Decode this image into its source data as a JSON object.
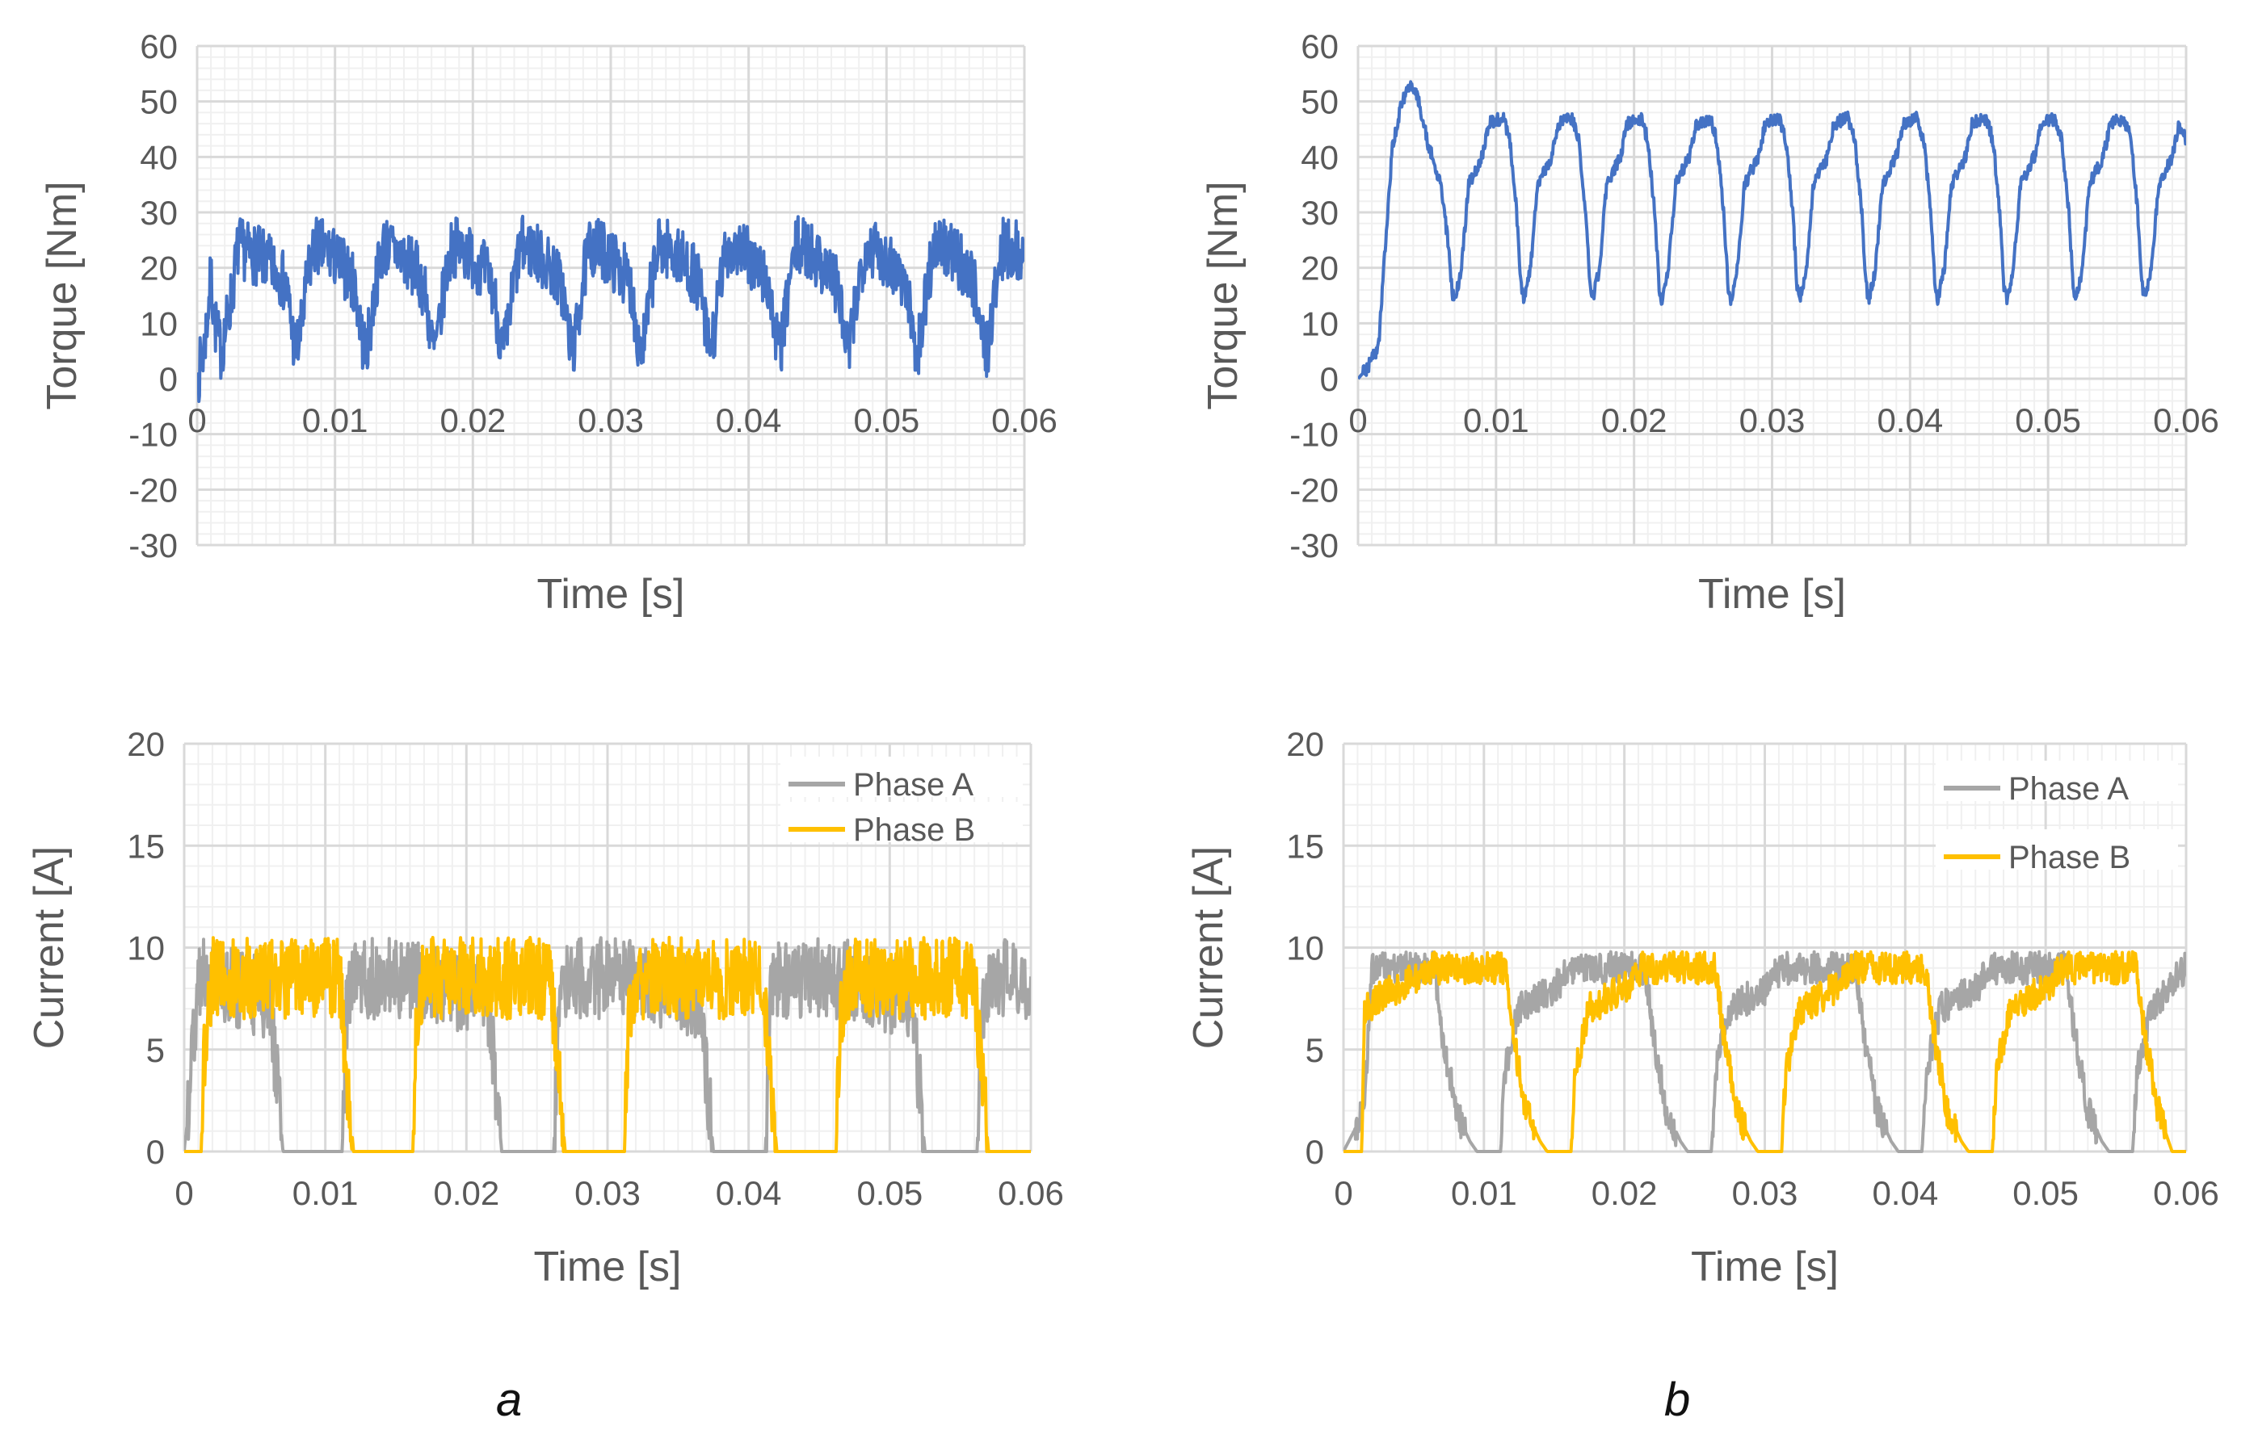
{
  "panel_labels": [
    "a",
    "b"
  ],
  "colors": {
    "torque": "#4472c4",
    "phase_a": "#a6a6a6",
    "phase_b": "#ffc000",
    "axis_text": "#595959",
    "major_grid": "#d9d9d9",
    "minor_grid": "#f0f0f0"
  },
  "chart_data": [
    {
      "id": "a-torque",
      "type": "line",
      "panel": "a",
      "title": "",
      "xlabel": "Time [s]",
      "ylabel": "Torque [Nm]",
      "xlim": [
        0,
        0.06
      ],
      "ylim": [
        -30,
        60
      ],
      "xticks": [
        0,
        0.01,
        0.02,
        0.03,
        0.04,
        0.05,
        0.06
      ],
      "xtick_labels": [
        "0",
        "0.01",
        "0.02",
        "0.03",
        "0.04",
        "0.05",
        "0.06"
      ],
      "yticks": [
        -30,
        -20,
        -10,
        0,
        10,
        20,
        30,
        40,
        50,
        60
      ],
      "ytick_labels": [
        "-30",
        "-20",
        "-10",
        "0",
        "10",
        "20",
        "30",
        "40",
        "50",
        "60"
      ],
      "legend": null,
      "series": [
        {
          "name": "Torque",
          "color": "#4472c4",
          "period": 0.005,
          "x": [
            0,
            0.0005,
            0.001,
            0.0013,
            0.0017,
            0.002,
            0.0025,
            0.003,
            0.0035,
            0.0045,
            0.006,
            0.0065,
            0.007,
            0.0072,
            0.0075,
            0.008,
            0.0085,
            0.0095,
            0.011,
            0.0115,
            0.012,
            0.0122,
            0.0125,
            0.013,
            0.0135,
            0.0145,
            0.016,
            0.0165,
            0.017,
            0.0172,
            0.0175,
            0.018,
            0.0185,
            0.0195,
            0.021,
            0.0215,
            0.022,
            0.0222,
            0.0225,
            0.023,
            0.0235,
            0.0245,
            0.026,
            0.0265,
            0.027,
            0.0272,
            0.0275,
            0.028,
            0.0285,
            0.0295,
            0.031,
            0.0315,
            0.032,
            0.0322,
            0.0325,
            0.033,
            0.0335,
            0.0345,
            0.036,
            0.0365,
            0.037,
            0.0372,
            0.0375,
            0.038,
            0.0385,
            0.0395,
            0.041,
            0.0415,
            0.042,
            0.0422,
            0.0425,
            0.043,
            0.0435,
            0.0445,
            0.046,
            0.0465,
            0.047,
            0.0472,
            0.0475,
            0.048,
            0.0485,
            0.0495,
            0.051,
            0.0515,
            0.052,
            0.0522,
            0.0525,
            0.053,
            0.0535,
            0.0545,
            0.056,
            0.0565,
            0.057,
            0.0572,
            0.0575,
            0.058,
            0.0585,
            0.0595,
            0.06
          ],
          "y": [
            0,
            5,
            18,
            10,
            5,
            8,
            15,
            24,
            23,
            22,
            19,
            16,
            7,
            5,
            8,
            18,
            24,
            23,
            19,
            16,
            7,
            5,
            8,
            18,
            24,
            23,
            19,
            16,
            7,
            5,
            8,
            18,
            24,
            23,
            19,
            16,
            7,
            5,
            8,
            18,
            24,
            23,
            19,
            16,
            7,
            5,
            8,
            18,
            24,
            23,
            19,
            16,
            7,
            5,
            8,
            18,
            24,
            23,
            19,
            16,
            7,
            5,
            8,
            18,
            24,
            23,
            19,
            16,
            7,
            5,
            8,
            18,
            24,
            23,
            19,
            16,
            7,
            5,
            8,
            18,
            24,
            23,
            19,
            16,
            7,
            5,
            8,
            18,
            24,
            23,
            19,
            16,
            7,
            5,
            8,
            18,
            24,
            23,
            20
          ],
          "ripple": 5.5
        }
      ]
    },
    {
      "id": "b-torque",
      "type": "line",
      "panel": "b",
      "title": "",
      "xlabel": "Time [s]",
      "ylabel": "Torque [Nm]",
      "xlim": [
        0,
        0.06
      ],
      "ylim": [
        -30,
        60
      ],
      "xticks": [
        0,
        0.01,
        0.02,
        0.03,
        0.04,
        0.05,
        0.06
      ],
      "xtick_labels": [
        "0",
        "0.01",
        "0.02",
        "0.03",
        "0.04",
        "0.05",
        "0.06"
      ],
      "yticks": [
        -30,
        -20,
        -10,
        0,
        10,
        20,
        30,
        40,
        50,
        60
      ],
      "ytick_labels": [
        "-30",
        "-20",
        "-10",
        "0",
        "10",
        "20",
        "30",
        "40",
        "50",
        "60"
      ],
      "legend": null,
      "series": [
        {
          "name": "Torque",
          "color": "#4472c4",
          "x": [
            0,
            0.0007,
            0.0015,
            0.002,
            0.0025,
            0.003,
            0.0035,
            0.004,
            0.0045,
            0.005,
            0.006,
            0.0065,
            0.0068,
            0.007,
            0.0075,
            0.008,
            0.009,
            0.0095,
            0.0105,
            0.011,
            0.0115,
            0.0118,
            0.012,
            0.0125,
            0.013,
            0.014,
            0.0145,
            0.0155,
            0.016,
            0.0165,
            0.0168,
            0.017,
            0.0175,
            0.018,
            0.019,
            0.0195,
            0.0205,
            0.021,
            0.0215,
            0.0218,
            0.022,
            0.0225,
            0.023,
            0.024,
            0.0245,
            0.0255,
            0.026,
            0.0265,
            0.0268,
            0.027,
            0.0275,
            0.028,
            0.029,
            0.0295,
            0.0305,
            0.031,
            0.0315,
            0.0318,
            0.032,
            0.0325,
            0.033,
            0.034,
            0.0345,
            0.0355,
            0.036,
            0.0365,
            0.0368,
            0.037,
            0.0375,
            0.038,
            0.039,
            0.0395,
            0.0405,
            0.041,
            0.0415,
            0.0418,
            0.042,
            0.0425,
            0.043,
            0.044,
            0.0445,
            0.0455,
            0.046,
            0.0465,
            0.0468,
            0.047,
            0.0475,
            0.048,
            0.049,
            0.0495,
            0.0505,
            0.051,
            0.0515,
            0.0518,
            0.052,
            0.0525,
            0.053,
            0.054,
            0.0545,
            0.0555,
            0.056,
            0.0565,
            0.0568,
            0.057,
            0.0575,
            0.058,
            0.059,
            0.0595,
            0.06
          ],
          "y": [
            0,
            2,
            6,
            25,
            42,
            48,
            52,
            53,
            49,
            43,
            35,
            25,
            16,
            14,
            20,
            35,
            40,
            46,
            47,
            43,
            30,
            17,
            14,
            20,
            35,
            40,
            46,
            47,
            43,
            30,
            17,
            14,
            20,
            35,
            40,
            46,
            47,
            43,
            30,
            17,
            14,
            20,
            35,
            40,
            46,
            47,
            43,
            30,
            17,
            14,
            20,
            35,
            40,
            46,
            47,
            43,
            30,
            17,
            14,
            20,
            35,
            40,
            46,
            47,
            43,
            30,
            17,
            14,
            20,
            35,
            40,
            46,
            47,
            43,
            30,
            17,
            14,
            20,
            35,
            40,
            46,
            47,
            43,
            30,
            17,
            14,
            20,
            35,
            40,
            46,
            47,
            43,
            30,
            17,
            14,
            20,
            35,
            40,
            46,
            47,
            43,
            30,
            17,
            14,
            20,
            35,
            40,
            46,
            43
          ],
          "ripple": 1.2
        }
      ]
    },
    {
      "id": "a-current",
      "type": "line",
      "panel": "a",
      "title": "",
      "xlabel": "Time [s]",
      "ylabel": "Current [A]",
      "xlim": [
        0,
        0.06
      ],
      "ylim": [
        0,
        20
      ],
      "xticks": [
        0,
        0.01,
        0.02,
        0.03,
        0.04,
        0.05,
        0.06
      ],
      "xtick_labels": [
        "0",
        "0.01",
        "0.02",
        "0.03",
        "0.04",
        "0.05",
        "0.06"
      ],
      "yticks": [
        0,
        5,
        10,
        15,
        20
      ],
      "ytick_labels": [
        "0",
        "5",
        "10",
        "15",
        "20"
      ],
      "legend": "top-right",
      "series": [
        {
          "name": "Phase A",
          "color": "#a6a6a6",
          "x": [
            0,
            0.0005,
            0.001,
            0.0015,
            0.006,
            0.0065,
            0.007,
            0.0075,
            0.0112,
            0.0115,
            0.012,
            0.0165,
            0.0215,
            0.022,
            0.0225,
            0.0262,
            0.0265,
            0.027,
            0.0315,
            0.0365,
            0.037,
            0.0375,
            0.0412,
            0.0415,
            0.042,
            0.0465,
            0.0515,
            0.052,
            0.0525,
            0.0562,
            0.0565,
            0.057,
            0.06
          ],
          "y": [
            0,
            4,
            8.5,
            8.5,
            7.5,
            4,
            0,
            0,
            0,
            7,
            8.5,
            8.5,
            7.5,
            4,
            0,
            0,
            7,
            8.5,
            8.5,
            7.5,
            4,
            0,
            0,
            7,
            8.5,
            8.5,
            7.5,
            4,
            0,
            0,
            7,
            8.5,
            8.5
          ],
          "ripple": 2.0
        },
        {
          "name": "Phase B",
          "color": "#ffc000",
          "x": [
            0,
            0.0012,
            0.0015,
            0.0018,
            0.002,
            0.011,
            0.0115,
            0.012,
            0.0162,
            0.0165,
            0.017,
            0.026,
            0.0265,
            0.027,
            0.0312,
            0.0315,
            0.032,
            0.041,
            0.0415,
            0.042,
            0.0462,
            0.0465,
            0.047,
            0.056,
            0.0565,
            0.057,
            0.06
          ],
          "y": [
            0,
            0,
            6,
            7.5,
            8.5,
            8.5,
            4,
            0,
            0,
            7,
            8.5,
            8.5,
            4,
            0,
            0,
            7,
            8.5,
            8.5,
            4,
            0,
            0,
            7,
            8.5,
            8.5,
            4,
            0,
            0
          ],
          "ripple": 2.0
        }
      ]
    },
    {
      "id": "b-current",
      "type": "line",
      "panel": "b",
      "title": "",
      "xlabel": "Time [s]",
      "ylabel": "Current [A]",
      "xlim": [
        0,
        0.06
      ],
      "ylim": [
        0,
        20
      ],
      "xticks": [
        0,
        0.01,
        0.02,
        0.03,
        0.04,
        0.05,
        0.06
      ],
      "xtick_labels": [
        "0",
        "0.01",
        "0.02",
        "0.03",
        "0.04",
        "0.05",
        "0.06"
      ],
      "yticks": [
        0,
        5,
        10,
        15,
        20
      ],
      "ytick_labels": [
        "0",
        "5",
        "10",
        "15",
        "20"
      ],
      "legend": "top-right",
      "series": [
        {
          "name": "Phase A",
          "color": "#a6a6a6",
          "x": [
            0,
            0.0015,
            0.002,
            0.0065,
            0.007,
            0.0075,
            0.008,
            0.009,
            0.0095,
            0.0112,
            0.0115,
            0.0125,
            0.015,
            0.0162,
            0.0215,
            0.022,
            0.0225,
            0.023,
            0.024,
            0.0245,
            0.0262,
            0.0265,
            0.0275,
            0.03,
            0.0312,
            0.0365,
            0.037,
            0.0375,
            0.038,
            0.039,
            0.0395,
            0.0412,
            0.0415,
            0.0425,
            0.045,
            0.0462,
            0.0515,
            0.052,
            0.0525,
            0.053,
            0.054,
            0.0545,
            0.0562,
            0.0565,
            0.0575,
            0.06
          ],
          "y": [
            0,
            2,
            9,
            9,
            6,
            4,
            2,
            0.5,
            0,
            0,
            4,
            7,
            8,
            9,
            9,
            6,
            4,
            2,
            0.5,
            0,
            0,
            4,
            7,
            8,
            9,
            9,
            6,
            4,
            2,
            0.5,
            0,
            0,
            4,
            7,
            8,
            9,
            9,
            6,
            4,
            2,
            0.5,
            0,
            0,
            4,
            7,
            9
          ],
          "ripple": 0.8
        },
        {
          "name": "Phase B",
          "color": "#ffc000",
          "x": [
            0,
            0.0013,
            0.0015,
            0.0025,
            0.005,
            0.0062,
            0.0115,
            0.012,
            0.0125,
            0.013,
            0.014,
            0.0145,
            0.0162,
            0.0165,
            0.0175,
            0.02,
            0.0212,
            0.0265,
            0.027,
            0.0275,
            0.028,
            0.029,
            0.0295,
            0.0312,
            0.0315,
            0.0325,
            0.035,
            0.0362,
            0.0415,
            0.042,
            0.0425,
            0.043,
            0.044,
            0.0445,
            0.0462,
            0.0465,
            0.0475,
            0.05,
            0.0512,
            0.0565,
            0.057,
            0.0575,
            0.058,
            0.059,
            0.06
          ],
          "y": [
            0,
            0,
            7,
            7.5,
            8.5,
            9,
            9,
            6,
            4,
            2,
            0.5,
            0,
            0,
            4,
            7,
            8,
            9,
            9,
            6,
            4,
            2,
            0.5,
            0,
            0,
            4,
            7,
            8,
            9,
            9,
            6,
            4,
            2,
            0.5,
            0,
            0,
            4,
            7,
            8,
            9,
            9,
            6,
            4,
            2,
            0,
            0
          ],
          "ripple": 0.8
        }
      ]
    }
  ]
}
